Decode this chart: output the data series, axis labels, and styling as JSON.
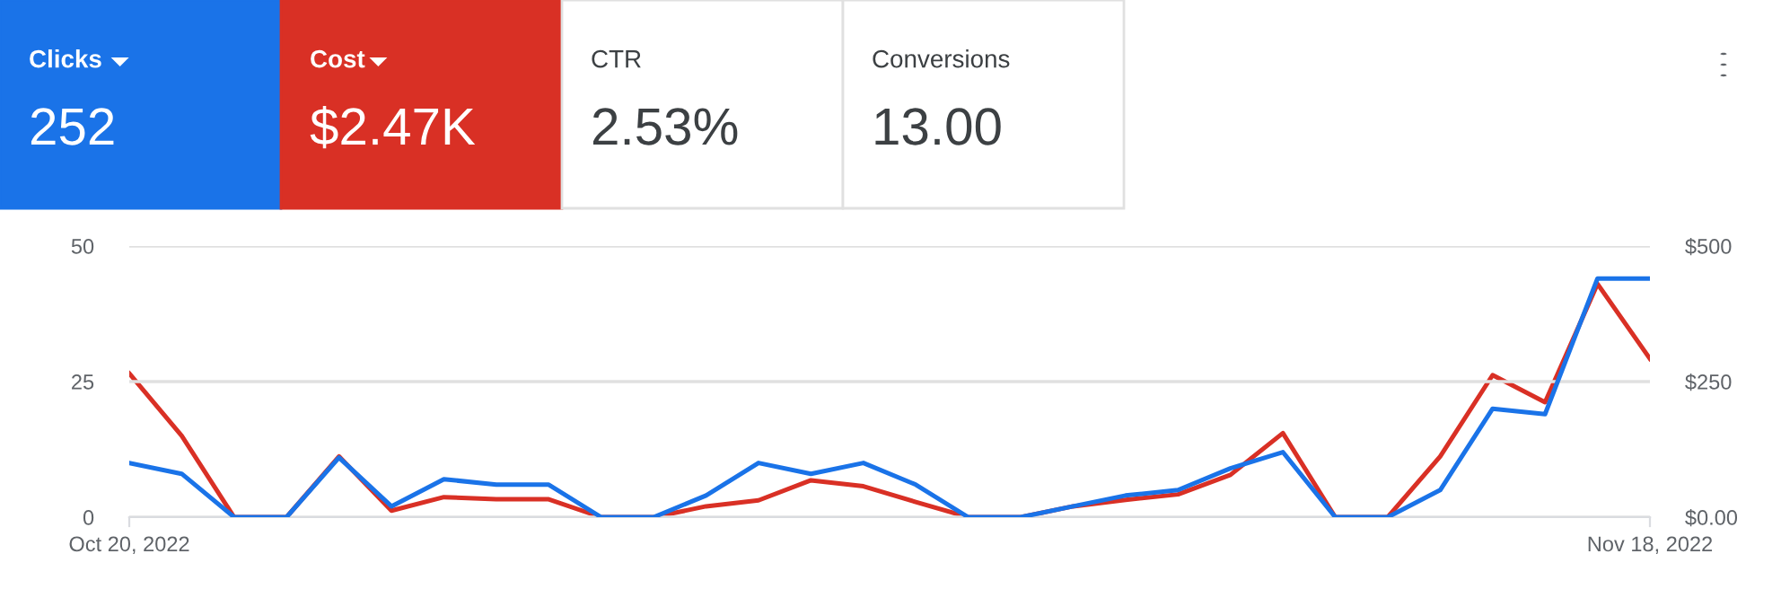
{
  "chart_data": {
    "type": "line",
    "x": [
      "2022-10-20",
      "2022-10-21",
      "2022-10-22",
      "2022-10-23",
      "2022-10-24",
      "2022-10-25",
      "2022-10-26",
      "2022-10-27",
      "2022-10-28",
      "2022-10-29",
      "2022-10-30",
      "2022-10-31",
      "2022-11-01",
      "2022-11-02",
      "2022-11-03",
      "2022-11-04",
      "2022-11-05",
      "2022-11-06",
      "2022-11-07",
      "2022-11-08",
      "2022-11-09",
      "2022-11-10",
      "2022-11-11",
      "2022-11-12",
      "2022-11-13",
      "2022-11-14",
      "2022-11-15",
      "2022-11-16",
      "2022-11-17",
      "2022-11-18"
    ],
    "series": [
      {
        "color": "#1a73e8",
        "values": [
          10,
          8,
          0,
          0,
          11,
          2,
          7,
          6,
          6,
          0,
          0,
          4,
          10,
          8,
          10,
          6,
          0,
          0,
          2,
          4,
          5,
          9,
          12,
          0,
          0,
          5,
          20,
          19,
          44,
          44
        ]
      },
      {
        "color": "#d93025",
        "axis": "y2",
        "values": [
          265,
          150,
          0,
          0,
          112,
          12,
          37,
          33,
          33,
          0,
          0,
          20,
          31,
          68,
          57,
          28,
          0,
          0,
          20,
          32,
          42,
          78,
          155,
          0,
          0,
          112,
          262,
          212,
          430,
          292
        ]
      }
    ],
    "xlim": [
      "2022-10-20",
      "2022-11-18"
    ],
    "xticks": [
      {
        "value": "2022-10-20",
        "label": "Oct 20, 2022"
      },
      {
        "value": "2022-11-18",
        "label": "Nov 18, 2022"
      }
    ],
    "ylim": [
      0,
      50
    ],
    "yticks": [
      0,
      25,
      50
    ],
    "y2lim": [
      0,
      500
    ],
    "y2ticks": [
      {
        "value": 0,
        "label": "$0.00"
      },
      {
        "value": 250,
        "label": "$250"
      },
      {
        "value": 500,
        "label": "$500"
      }
    ],
    "grid": "y",
    "marker": "none",
    "line_style": "solid",
    "annotations": [
      "Clicks",
      "252",
      "Cost",
      "$2.47K",
      "CTR",
      "2.53%",
      "Conversions",
      "13.00"
    ]
  }
}
